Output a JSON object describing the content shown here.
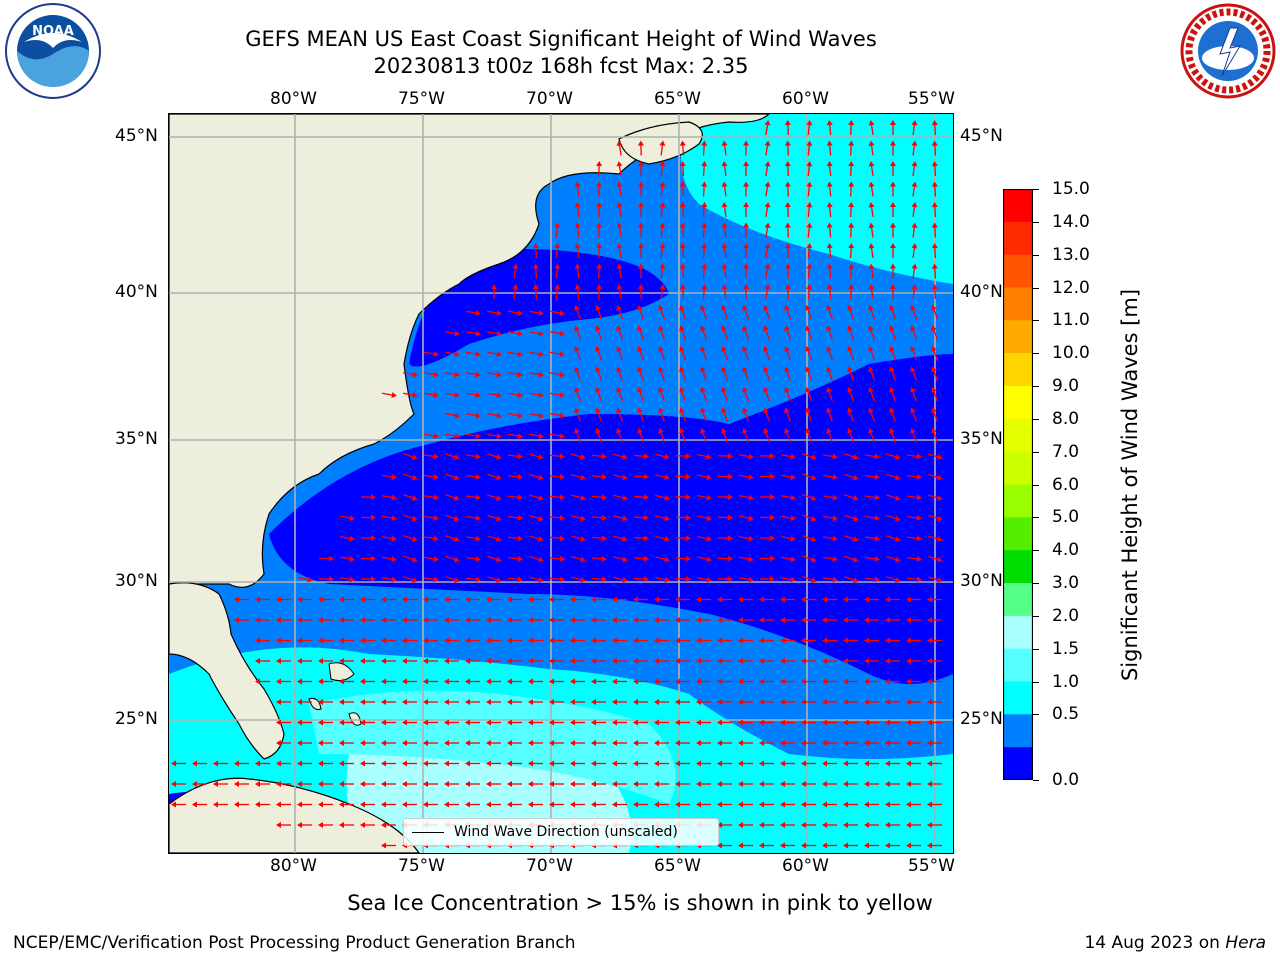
{
  "title": {
    "line1": "GEFS MEAN US East Coast Significant Height of Wind Waves",
    "line2": "20230813 t00z 168h fcst   Max: 2.35"
  },
  "logos": {
    "left": "NOAA",
    "right": "NATIONAL WEATHER SERVICE"
  },
  "map": {
    "lon_ticks": [
      "80°W",
      "75°W",
      "70°W",
      "65°W",
      "60°W",
      "55°W"
    ],
    "lat_ticks": [
      "45°N",
      "40°N",
      "35°N",
      "30°N",
      "25°N"
    ],
    "legend_label": "Wind Wave Direction (unscaled)",
    "colors": {
      "land": "#eeeedc",
      "arrow": "#ff0000",
      "grid": "#b0b0b0"
    }
  },
  "colorbar": {
    "label": "Significant Height of Wind Waves [m]",
    "ticks": [
      "15.0",
      "14.0",
      "13.0",
      "12.0",
      "11.0",
      "10.0",
      "9.0",
      "8.0",
      "7.0",
      "6.0",
      "5.0",
      "4.0",
      "3.0",
      "2.0",
      "1.5",
      "1.0",
      "0.5",
      "0.0"
    ],
    "colors": [
      "#ff0000",
      "#ff2a00",
      "#ff5500",
      "#ff8000",
      "#ffaa00",
      "#ffd500",
      "#ffff00",
      "#e6ff00",
      "#ccff00",
      "#99ff00",
      "#55ee00",
      "#00dd00",
      "#55ff88",
      "#aaffff",
      "#55ffff",
      "#00ffff",
      "#0080ff",
      "#0000ff"
    ]
  },
  "note": "Sea Ice Concentration > 15% is shown in pink to yellow",
  "footer": {
    "left": "NCEP/EMC/Verification Post Processing Product Generation Branch",
    "right_prefix": "14 Aug 2023 on ",
    "right_host": "Hera"
  }
}
